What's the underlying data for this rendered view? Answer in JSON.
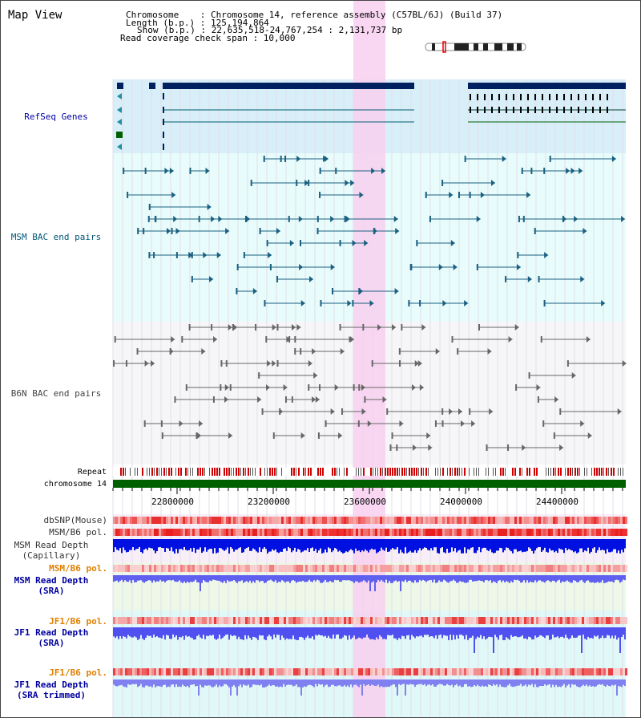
{
  "title": "Map View",
  "header": {
    "chromosome": "Chromosome    : Chromosome 14, reference assembly (C57BL/6J) (Build 37)",
    "length": "Length (b.p.) : 125,194,864",
    "show": "Show (b.p.) : 22,635,518-24,767,254 : 2,131,737 bp",
    "coverage": "Read coverage check span : 10,000"
  },
  "tracks": {
    "refseq": "RefSeq Genes",
    "msm_bac": "MSM BAC end pairs",
    "b6n_bac": "B6N BAC end pairs",
    "repeat": "Repeat",
    "chromosome": "chromosome 14",
    "dbsnp": "dbSNP(Mouse)",
    "msm_b6_pol_1": "MSM/B6 pol.",
    "msm_depth_cap_1": "MSM Read Depth",
    "msm_depth_cap_2": "(Capillary)",
    "msm_b6_pol_2": "MSM/B6 pol.",
    "msm_depth_sra_1": "MSM Read Depth",
    "msm_depth_sra_2": "(SRA)",
    "jf1_b6_pol_1": "JF1/B6 pol.",
    "jf1_depth_sra_1": "JF1 Read Depth",
    "jf1_depth_sra_2": "(SRA)",
    "jf1_b6_pol_2": "JF1/B6 pol.",
    "jf1_depth_trim_1": "JF1 Read Depth",
    "jf1_depth_trim_2": "(SRA trimmed)"
  },
  "axis": {
    "ticks": [
      "22800000",
      "23200000",
      "23600000",
      "24000000",
      "24400000"
    ]
  },
  "colors": {
    "refseq_label": "#0000a0",
    "msm_label": "#005577",
    "b6n_label": "#444444",
    "pol_orange": "#e08000",
    "depth_blue": "#0000a0",
    "gene_dark": "#002060",
    "highlight": "#f8d0f0",
    "chromosome_bar": "#006000"
  }
}
